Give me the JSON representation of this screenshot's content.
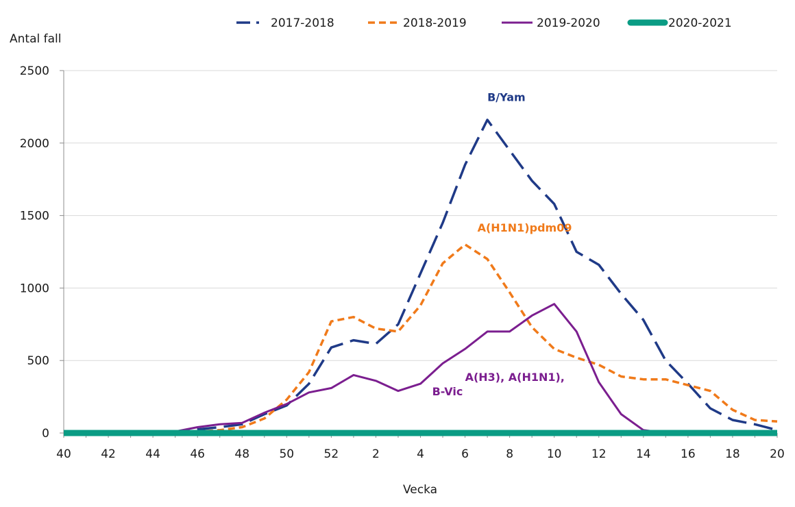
{
  "chart_data": {
    "type": "line",
    "ylabel": "Antal fall",
    "xlabel": "Vecka",
    "ylim": [
      0,
      2500
    ],
    "yticks": [
      0,
      500,
      1000,
      1500,
      2000,
      2500
    ],
    "grid": true,
    "legend_position": "top",
    "categories": [
      "40",
      "41",
      "42",
      "43",
      "44",
      "45",
      "46",
      "47",
      "48",
      "49",
      "50",
      "51",
      "52",
      "1",
      "2",
      "3",
      "4",
      "5",
      "6",
      "7",
      "8",
      "9",
      "10",
      "11",
      "12",
      "13",
      "14",
      "15",
      "16",
      "17",
      "18",
      "19",
      "20"
    ],
    "xtick_labels": [
      "40",
      "42",
      "44",
      "46",
      "48",
      "50",
      "52",
      "2",
      "4",
      "6",
      "8",
      "10",
      "12",
      "14",
      "16",
      "18",
      "20"
    ],
    "series": [
      {
        "name": "2017-2018",
        "color": "#1f3a87",
        "style": "long-dash",
        "values": [
          0,
          0,
          0,
          0,
          0,
          5,
          25,
          40,
          60,
          130,
          190,
          340,
          590,
          640,
          615,
          750,
          1100,
          1450,
          1850,
          2160,
          1950,
          1740,
          1580,
          1250,
          1160,
          960,
          780,
          500,
          340,
          170,
          90,
          60,
          20
        ]
      },
      {
        "name": "2018-2019",
        "color": "#f07a1a",
        "style": "short-dash",
        "values": [
          0,
          0,
          0,
          0,
          0,
          0,
          10,
          20,
          40,
          100,
          230,
          420,
          770,
          800,
          720,
          700,
          880,
          1170,
          1300,
          1200,
          970,
          730,
          580,
          520,
          470,
          390,
          370,
          370,
          330,
          290,
          160,
          90,
          80
        ]
      },
      {
        "name": "2019-2020",
        "color": "#7b1e8f",
        "style": "solid",
        "values": [
          0,
          0,
          0,
          0,
          0,
          10,
          40,
          60,
          70,
          140,
          200,
          280,
          310,
          400,
          360,
          290,
          340,
          480,
          580,
          700,
          700,
          810,
          890,
          700,
          350,
          130,
          20,
          0,
          0,
          0,
          0,
          0,
          0
        ]
      },
      {
        "name": "2020-2021",
        "color": "#0a9c84",
        "style": "thick",
        "values": [
          0,
          0,
          0,
          0,
          0,
          0,
          0,
          0,
          0,
          0,
          0,
          0,
          0,
          0,
          0,
          0,
          0,
          0,
          0,
          0,
          0,
          0,
          0,
          0,
          0,
          0,
          0,
          0,
          0,
          0,
          0,
          0,
          0
        ]
      }
    ],
    "annotations": [
      {
        "text": "B/Yam",
        "series": "2017-2018",
        "x": "7",
        "y": 2290
      },
      {
        "text": "A(H1N1)pdm09",
        "series": "2018-2019",
        "x": "6",
        "y": 1390
      },
      {
        "text": "A(H3), A(H1N1),",
        "series": "2019-2020",
        "x": "6",
        "y": 360
      },
      {
        "text": "B-Vic",
        "series": "2019-2020",
        "x": "6",
        "y": 260
      }
    ]
  }
}
